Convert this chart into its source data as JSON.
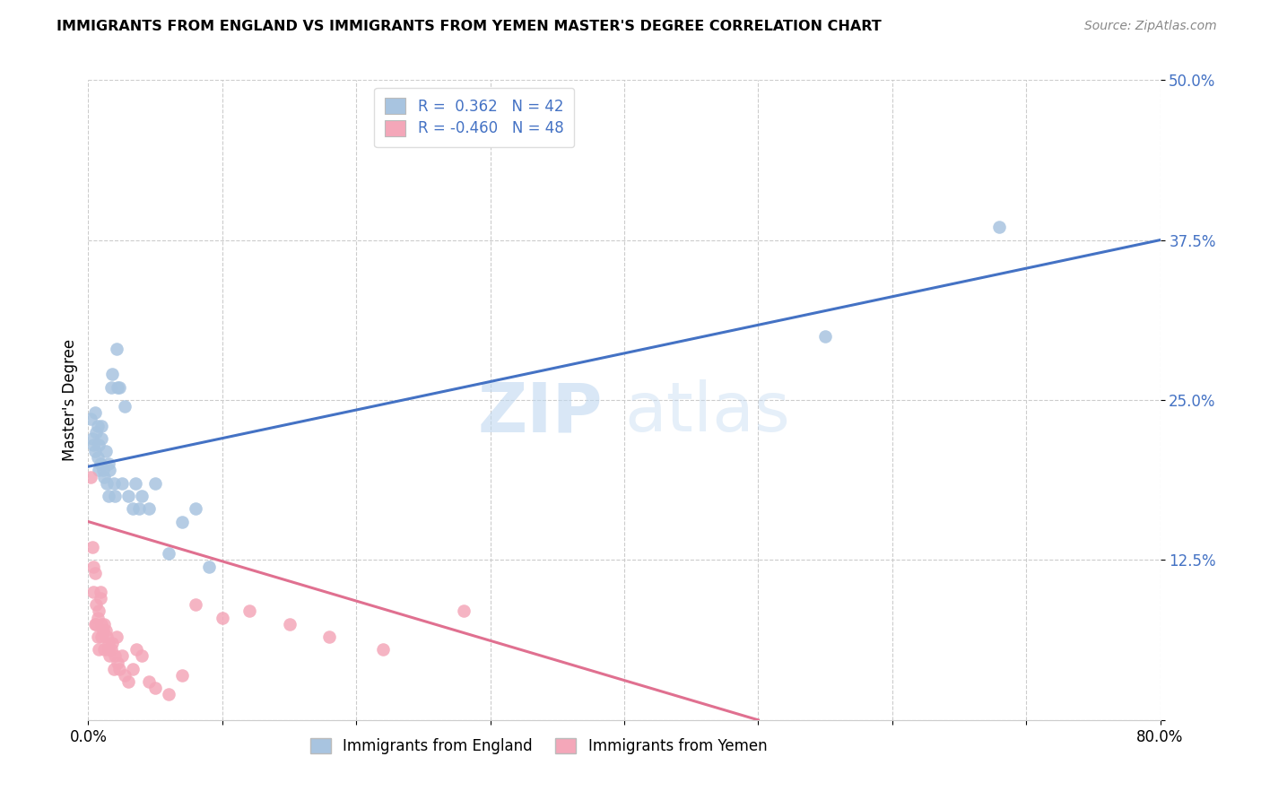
{
  "title": "IMMIGRANTS FROM ENGLAND VS IMMIGRANTS FROM YEMEN MASTER'S DEGREE CORRELATION CHART",
  "source": "Source: ZipAtlas.com",
  "ylabel": "Master's Degree",
  "xlim": [
    0.0,
    0.8
  ],
  "ylim": [
    0.0,
    0.5
  ],
  "yticks": [
    0.0,
    0.125,
    0.25,
    0.375,
    0.5
  ],
  "ytick_labels": [
    "",
    "12.5%",
    "25.0%",
    "37.5%",
    "50.0%"
  ],
  "xticks": [
    0.0,
    0.1,
    0.2,
    0.3,
    0.4,
    0.5,
    0.6,
    0.7,
    0.8
  ],
  "xtick_labels": [
    "0.0%",
    "",
    "",
    "",
    "",
    "",
    "",
    "",
    "80.0%"
  ],
  "england_color": "#a8c4e0",
  "yemen_color": "#f4a7b9",
  "england_line_color": "#4472c4",
  "yemen_line_color": "#e07090",
  "legend_england_R": "0.362",
  "legend_england_N": "42",
  "legend_yemen_R": "-0.460",
  "legend_yemen_N": "48",
  "watermark_zip": "ZIP",
  "watermark_atlas": "atlas",
  "england_scatter_x": [
    0.002,
    0.003,
    0.004,
    0.005,
    0.005,
    0.006,
    0.007,
    0.007,
    0.008,
    0.008,
    0.009,
    0.01,
    0.01,
    0.011,
    0.012,
    0.013,
    0.014,
    0.015,
    0.015,
    0.016,
    0.017,
    0.018,
    0.019,
    0.02,
    0.021,
    0.022,
    0.023,
    0.025,
    0.027,
    0.03,
    0.033,
    0.035,
    0.038,
    0.04,
    0.045,
    0.05,
    0.06,
    0.07,
    0.08,
    0.09,
    0.55,
    0.68
  ],
  "england_scatter_y": [
    0.235,
    0.22,
    0.215,
    0.24,
    0.21,
    0.225,
    0.23,
    0.205,
    0.215,
    0.195,
    0.2,
    0.22,
    0.23,
    0.195,
    0.19,
    0.21,
    0.185,
    0.2,
    0.175,
    0.195,
    0.26,
    0.27,
    0.185,
    0.175,
    0.29,
    0.26,
    0.26,
    0.185,
    0.245,
    0.175,
    0.165,
    0.185,
    0.165,
    0.175,
    0.165,
    0.185,
    0.13,
    0.155,
    0.165,
    0.12,
    0.3,
    0.385
  ],
  "yemen_scatter_x": [
    0.002,
    0.003,
    0.004,
    0.004,
    0.005,
    0.005,
    0.006,
    0.006,
    0.007,
    0.007,
    0.008,
    0.008,
    0.009,
    0.009,
    0.01,
    0.01,
    0.011,
    0.012,
    0.012,
    0.013,
    0.014,
    0.015,
    0.015,
    0.016,
    0.017,
    0.018,
    0.019,
    0.02,
    0.021,
    0.022,
    0.023,
    0.025,
    0.027,
    0.03,
    0.033,
    0.036,
    0.04,
    0.045,
    0.05,
    0.06,
    0.07,
    0.08,
    0.1,
    0.12,
    0.15,
    0.18,
    0.22,
    0.28
  ],
  "yemen_scatter_y": [
    0.19,
    0.135,
    0.12,
    0.1,
    0.115,
    0.075,
    0.09,
    0.075,
    0.065,
    0.08,
    0.085,
    0.055,
    0.1,
    0.095,
    0.075,
    0.065,
    0.07,
    0.075,
    0.055,
    0.07,
    0.065,
    0.06,
    0.055,
    0.05,
    0.055,
    0.06,
    0.04,
    0.05,
    0.065,
    0.045,
    0.04,
    0.05,
    0.035,
    0.03,
    0.04,
    0.055,
    0.05,
    0.03,
    0.025,
    0.02,
    0.035,
    0.09,
    0.08,
    0.085,
    0.075,
    0.065,
    0.055,
    0.085
  ],
  "england_trend_x": [
    0.0,
    0.8
  ],
  "england_trend_y": [
    0.198,
    0.375
  ],
  "yemen_trend_x": [
    0.0,
    0.5
  ],
  "yemen_trend_y": [
    0.155,
    0.0
  ]
}
